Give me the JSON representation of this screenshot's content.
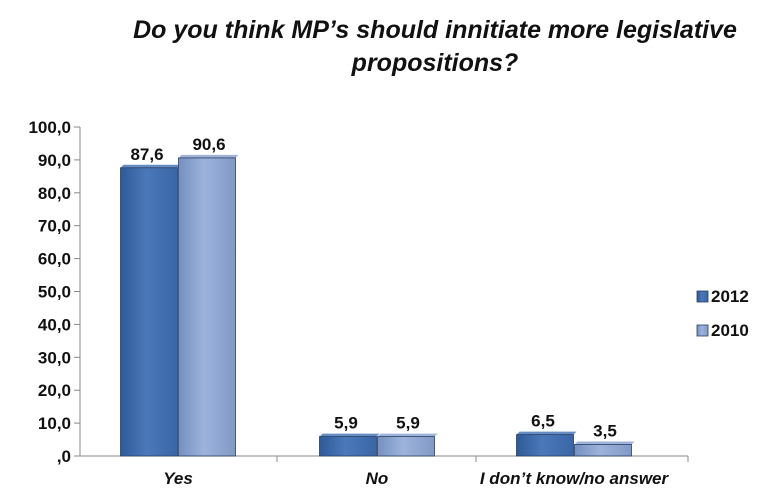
{
  "chart_data": {
    "type": "bar",
    "title_lines": [
      "Do you think MP’s should innitiate more legislative",
      "propositions?"
    ],
    "categories": [
      "Yes",
      "No",
      "I don’t know/no answer"
    ],
    "series": [
      {
        "name": "2012",
        "values": [
          87.6,
          5.9,
          6.5
        ],
        "labels": [
          "87,6",
          "5,9",
          "6,5"
        ],
        "color": "#4a78b8"
      },
      {
        "name": "2010",
        "values": [
          90.6,
          5.9,
          3.5
        ],
        "labels": [
          "90,6",
          "5,9",
          "3,5"
        ],
        "color": "#8ea6d2"
      }
    ],
    "ylim": [
      0,
      100
    ],
    "yticks": [
      0,
      10,
      20,
      30,
      40,
      50,
      60,
      70,
      80,
      90,
      100
    ],
    "ytick_labels": [
      ",0",
      "10,0",
      "20,0",
      "30,0",
      "40,0",
      "50,0",
      "60,0",
      "70,0",
      "80,0",
      "90,0",
      "100,0"
    ],
    "xlabel": "",
    "ylabel": "",
    "legend_position": "right",
    "grid": false
  }
}
